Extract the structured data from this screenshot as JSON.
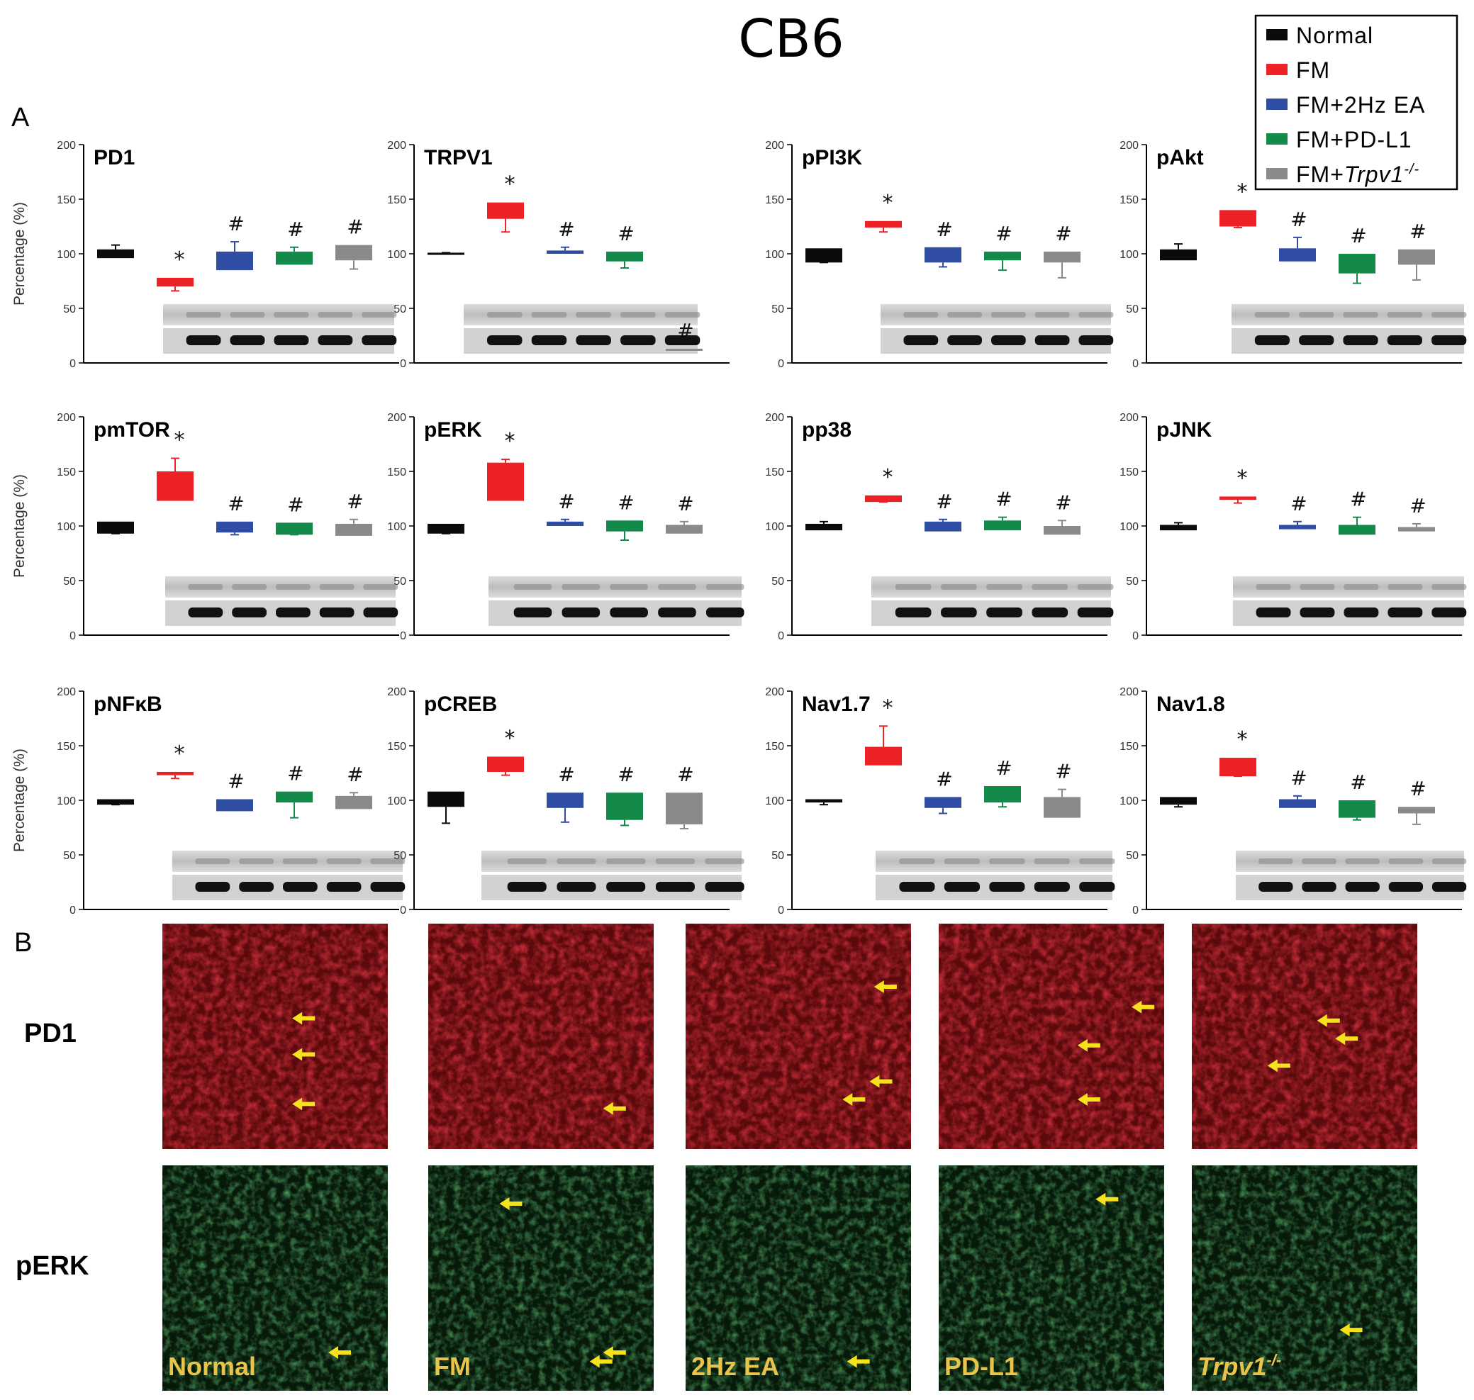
{
  "figure": {
    "title": "CB6",
    "panel_a_label": "A",
    "panel_b_label": "B"
  },
  "legend": [
    {
      "label": "Normal",
      "color": "#0b0b0b"
    },
    {
      "label": "FM",
      "color": "#ec2226"
    },
    {
      "label": "FM+2Hz EA",
      "color": "#2f4ea3"
    },
    {
      "label": "FM+PD-L1",
      "color": "#13894a"
    },
    {
      "label": "FM+",
      "suffix": "Trpv1",
      "sup": "-/-",
      "color": "#8a8a8a"
    }
  ],
  "colors": {
    "normal": "#0b0b0b",
    "fm": "#ec2226",
    "ea": "#2f4ea3",
    "pdl1": "#13894a",
    "trpv1": "#8a8a8a",
    "arrow": "#f5e11c",
    "overlay_text": "#e8c44a"
  },
  "chart_data": [
    {
      "type": "bar",
      "title": "PD1",
      "ylabel": "Percentage (%)",
      "ylim": [
        0,
        200
      ],
      "yticks": [
        0,
        50,
        100,
        150,
        200
      ],
      "categories": [
        "Normal",
        "FM",
        "FM+2Hz EA",
        "FM+PD-L1",
        "FM+Trpv1-/-"
      ],
      "boxes": [
        [
          96,
          104,
          108
        ],
        [
          70,
          78,
          66
        ],
        [
          85,
          102,
          111
        ],
        [
          90,
          102,
          106
        ],
        [
          94,
          108,
          86
        ]
      ],
      "marks": [
        "",
        "*",
        "#",
        "#",
        "#"
      ]
    },
    {
      "type": "bar",
      "title": "TRPV1",
      "ylabel": "",
      "ylim": [
        0,
        200
      ],
      "yticks": [
        0,
        50,
        100,
        150,
        200
      ],
      "categories": [
        "Normal",
        "FM",
        "FM+2Hz EA",
        "FM+PD-L1",
        "FM+Trpv1-/-"
      ],
      "boxes": [
        [
          99,
          101,
          101
        ],
        [
          132,
          147,
          120
        ],
        [
          100,
          103,
          106
        ],
        [
          93,
          102,
          87
        ],
        [
          12,
          13,
          12
        ]
      ],
      "marks": [
        "",
        "*",
        "#",
        "#",
        "#"
      ]
    },
    {
      "type": "bar",
      "title": "pPI3K",
      "ylabel": "",
      "ylim": [
        0,
        200
      ],
      "yticks": [
        0,
        50,
        100,
        150,
        200
      ],
      "categories": [
        "Normal",
        "FM",
        "FM+2Hz EA",
        "FM+PD-L1",
        "FM+Trpv1-/-"
      ],
      "boxes": [
        [
          92,
          105,
          92
        ],
        [
          124,
          130,
          120
        ],
        [
          92,
          106,
          88
        ],
        [
          94,
          102,
          85
        ],
        [
          92,
          102,
          78
        ]
      ],
      "marks": [
        "",
        "*",
        "#",
        "#",
        "#"
      ]
    },
    {
      "type": "bar",
      "title": "pAkt",
      "ylabel": "",
      "ylim": [
        0,
        200
      ],
      "yticks": [
        0,
        50,
        100,
        150,
        200
      ],
      "categories": [
        "Normal",
        "FM",
        "FM+2Hz EA",
        "FM+PD-L1",
        "FM+Trpv1-/-"
      ],
      "boxes": [
        [
          94,
          104,
          109
        ],
        [
          125,
          140,
          124
        ],
        [
          93,
          105,
          115
        ],
        [
          82,
          100,
          73
        ],
        [
          90,
          104,
          76
        ]
      ],
      "marks": [
        "",
        "*",
        "#",
        "#",
        "#"
      ]
    },
    {
      "type": "bar",
      "title": "pmTOR",
      "ylabel": "Percentage (%)",
      "ylim": [
        0,
        200
      ],
      "yticks": [
        0,
        50,
        100,
        150,
        200
      ],
      "categories": [
        "Normal",
        "FM",
        "FM+2Hz EA",
        "FM+PD-L1",
        "FM+Trpv1-/-"
      ],
      "boxes": [
        [
          93,
          104,
          93
        ],
        [
          123,
          150,
          162
        ],
        [
          94,
          104,
          92
        ],
        [
          92,
          103,
          92
        ],
        [
          91,
          102,
          106
        ]
      ],
      "marks": [
        "",
        "*",
        "#",
        "#",
        "#"
      ]
    },
    {
      "type": "bar",
      "title": "pERK",
      "ylabel": "",
      "ylim": [
        0,
        200
      ],
      "yticks": [
        0,
        50,
        100,
        150,
        200
      ],
      "categories": [
        "Normal",
        "FM",
        "FM+2Hz EA",
        "FM+PD-L1",
        "FM+Trpv1-/-"
      ],
      "boxes": [
        [
          93,
          102,
          93
        ],
        [
          123,
          158,
          161
        ],
        [
          100,
          104,
          106
        ],
        [
          95,
          105,
          87
        ],
        [
          93,
          101,
          104
        ]
      ],
      "marks": [
        "",
        "*",
        "#",
        "#",
        "#"
      ]
    },
    {
      "type": "bar",
      "title": "pp38",
      "ylabel": "",
      "ylim": [
        0,
        200
      ],
      "yticks": [
        0,
        50,
        100,
        150,
        200
      ],
      "categories": [
        "Normal",
        "FM",
        "FM+2Hz EA",
        "FM+PD-L1",
        "FM+Trpv1-/-"
      ],
      "boxes": [
        [
          96,
          102,
          104
        ],
        [
          122,
          128,
          122
        ],
        [
          95,
          104,
          106
        ],
        [
          96,
          105,
          108
        ],
        [
          92,
          100,
          105
        ]
      ],
      "marks": [
        "",
        "*",
        "#",
        "#",
        "#"
      ]
    },
    {
      "type": "bar",
      "title": "pJNK",
      "ylabel": "",
      "ylim": [
        0,
        200
      ],
      "yticks": [
        0,
        50,
        100,
        150,
        200
      ],
      "categories": [
        "Normal",
        "FM",
        "FM+2Hz EA",
        "FM+PD-L1",
        "FM+Trpv1-/-"
      ],
      "boxes": [
        [
          96,
          101,
          103
        ],
        [
          124,
          127,
          121
        ],
        [
          97,
          101,
          104
        ],
        [
          92,
          101,
          108
        ],
        [
          95,
          99,
          102
        ]
      ],
      "marks": [
        "",
        "*",
        "#",
        "#",
        "#"
      ]
    },
    {
      "type": "bar",
      "title": "pNFκB",
      "ylabel": "Percentage (%)",
      "ylim": [
        0,
        200
      ],
      "yticks": [
        0,
        50,
        100,
        150,
        200
      ],
      "categories": [
        "Normal",
        "FM",
        "FM+2Hz EA",
        "FM+PD-L1",
        "FM+Trpv1-/-"
      ],
      "boxes": [
        [
          96,
          101,
          96
        ],
        [
          123,
          126,
          120
        ],
        [
          90,
          101,
          92
        ],
        [
          98,
          108,
          84
        ],
        [
          92,
          104,
          107
        ]
      ],
      "marks": [
        "",
        "*",
        "#",
        "#",
        "#"
      ]
    },
    {
      "type": "bar",
      "title": "pCREB",
      "ylabel": "",
      "ylim": [
        0,
        200
      ],
      "yticks": [
        0,
        50,
        100,
        150,
        200
      ],
      "categories": [
        "Normal",
        "FM",
        "FM+2Hz EA",
        "FM+PD-L1",
        "FM+Trpv1-/-"
      ],
      "boxes": [
        [
          94,
          108,
          79
        ],
        [
          126,
          140,
          123
        ],
        [
          93,
          107,
          80
        ],
        [
          82,
          107,
          77
        ],
        [
          78,
          107,
          74
        ]
      ],
      "marks": [
        "",
        "*",
        "#",
        "#",
        "#"
      ]
    },
    {
      "type": "bar",
      "title": "Nav1.7",
      "ylabel": "",
      "ylim": [
        0,
        200
      ],
      "yticks": [
        0,
        50,
        100,
        150,
        200
      ],
      "categories": [
        "Normal",
        "FM",
        "FM+2Hz EA",
        "FM+PD-L1",
        "FM+Trpv1-/-"
      ],
      "boxes": [
        [
          98,
          101,
          96
        ],
        [
          132,
          149,
          168
        ],
        [
          93,
          103,
          88
        ],
        [
          98,
          113,
          94
        ],
        [
          84,
          103,
          110
        ]
      ],
      "marks": [
        "",
        "*",
        "#",
        "#",
        "#"
      ]
    },
    {
      "type": "bar",
      "title": "Nav1.8",
      "ylabel": "",
      "ylim": [
        0,
        200
      ],
      "yticks": [
        0,
        50,
        100,
        150,
        200
      ],
      "categories": [
        "Normal",
        "FM",
        "FM+2Hz EA",
        "FM+PD-L1",
        "FM+Trpv1-/-"
      ],
      "boxes": [
        [
          96,
          103,
          94
        ],
        [
          122,
          139,
          122
        ],
        [
          93,
          101,
          104
        ],
        [
          84,
          100,
          82
        ],
        [
          88,
          94,
          78
        ]
      ],
      "marks": [
        "",
        "*",
        "#",
        "#",
        "#"
      ]
    }
  ],
  "micrographs": {
    "rows": [
      "PD1",
      "pERK"
    ],
    "column_labels": [
      {
        "text": "Normal",
        "italic": false,
        "sup": ""
      },
      {
        "text": "FM",
        "italic": false,
        "sup": ""
      },
      {
        "text": "2Hz EA",
        "italic": false,
        "sup": ""
      },
      {
        "text": "PD-L1",
        "italic": false,
        "sup": ""
      },
      {
        "text": "Trpv1",
        "italic": true,
        "sup": "-/-"
      }
    ],
    "arrows_per_image": [
      [
        3,
        1,
        3,
        3,
        3
      ],
      [
        1,
        3,
        1,
        1,
        1
      ]
    ]
  }
}
